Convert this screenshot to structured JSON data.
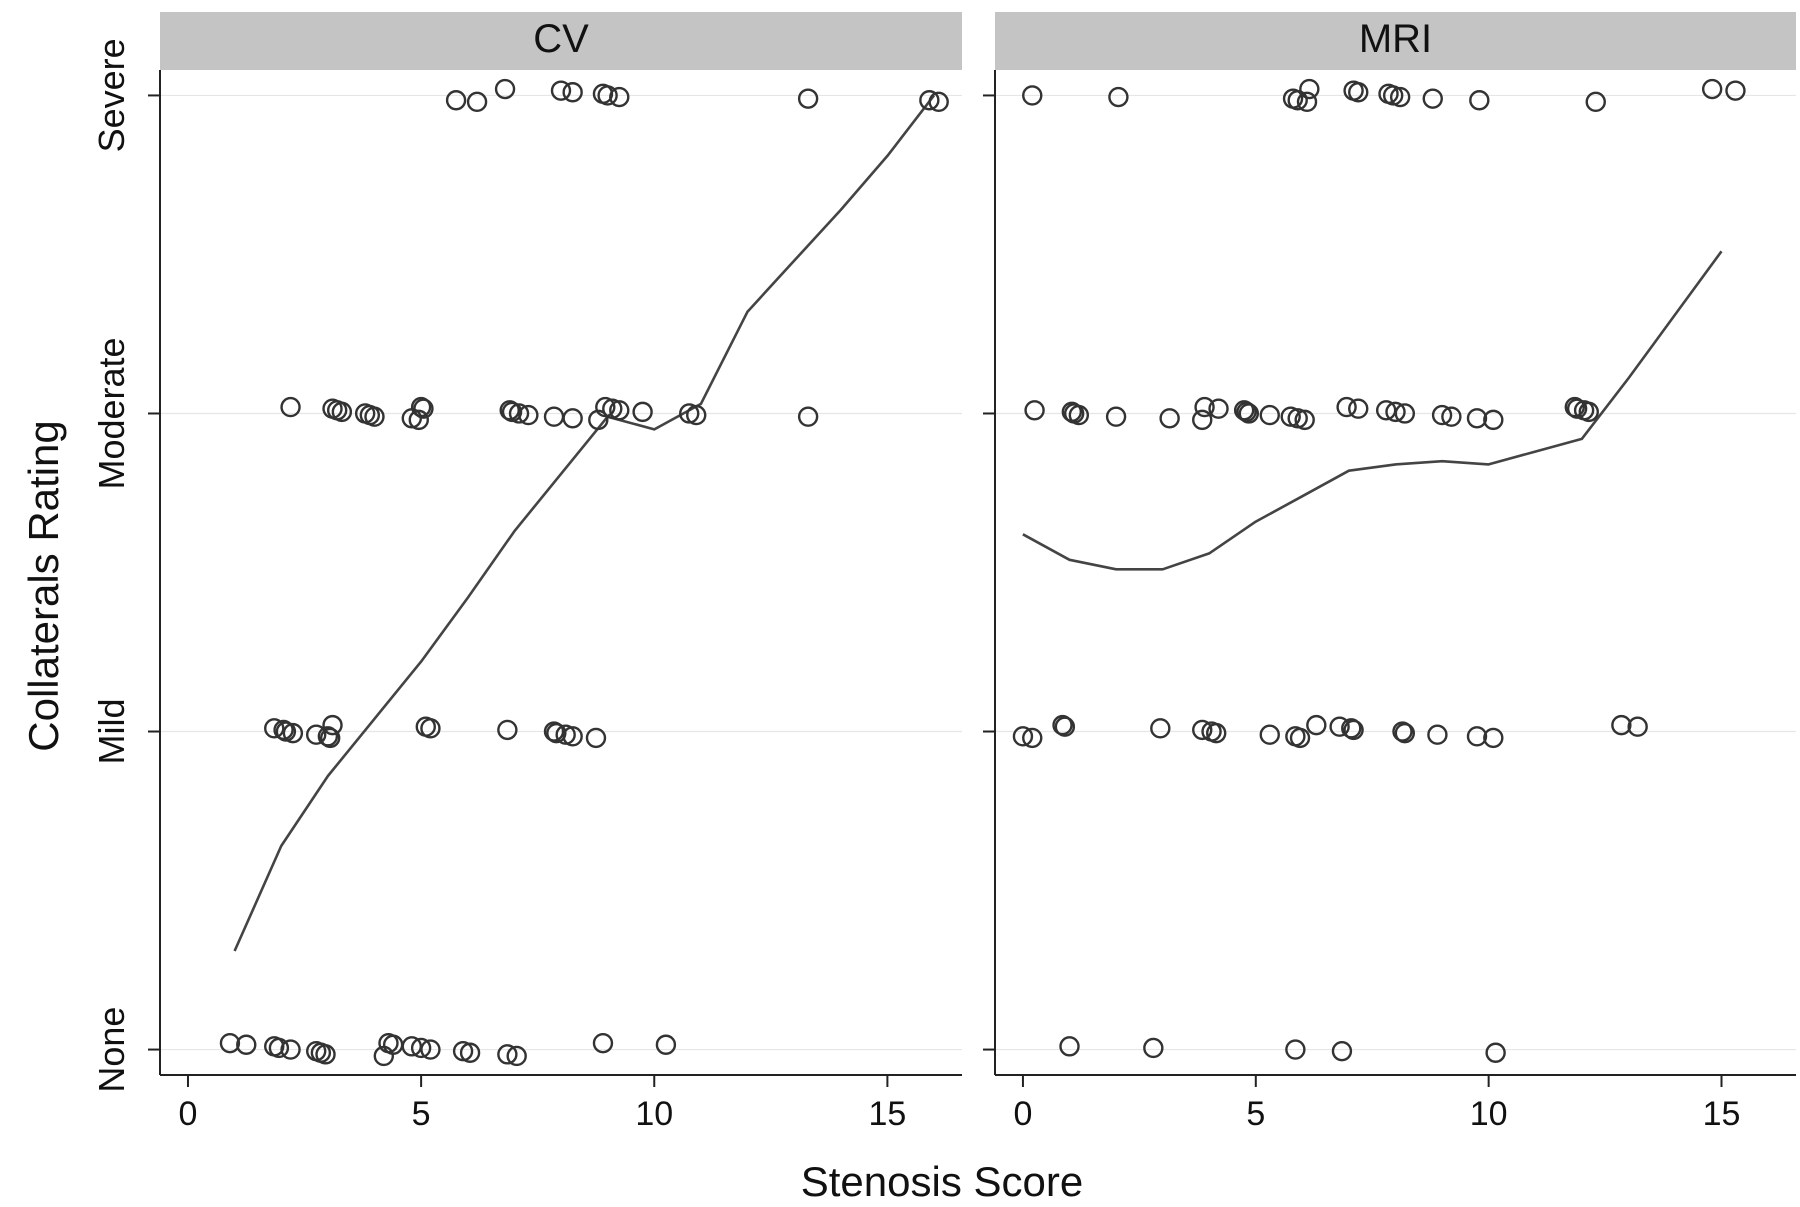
{
  "chart_data": {
    "type": "scatter",
    "xlabel": "Stenosis Score",
    "ylabel": "Collaterals Rating",
    "y_categories": [
      "None",
      "Mild",
      "Moderate",
      "Severe"
    ],
    "x_ticks": [
      0,
      5,
      10,
      15
    ],
    "xlim": [
      -0.6,
      16.6
    ],
    "ylim": [
      -0.08,
      3.08
    ],
    "panels": [
      {
        "title": "CV",
        "points": [
          {
            "x": 0.9,
            "y": 0
          },
          {
            "x": 1.25,
            "y": 0
          },
          {
            "x": 1.85,
            "y": 0
          },
          {
            "x": 1.95,
            "y": 0
          },
          {
            "x": 2.2,
            "y": 0
          },
          {
            "x": 2.75,
            "y": 0
          },
          {
            "x": 2.85,
            "y": 0
          },
          {
            "x": 2.95,
            "y": 0
          },
          {
            "x": 4.2,
            "y": 0
          },
          {
            "x": 4.3,
            "y": 0
          },
          {
            "x": 4.4,
            "y": 0
          },
          {
            "x": 4.8,
            "y": 0
          },
          {
            "x": 5.0,
            "y": 0
          },
          {
            "x": 5.2,
            "y": 0
          },
          {
            "x": 5.9,
            "y": 0
          },
          {
            "x": 6.05,
            "y": 0
          },
          {
            "x": 6.85,
            "y": 0
          },
          {
            "x": 7.05,
            "y": 0
          },
          {
            "x": 8.9,
            "y": 0
          },
          {
            "x": 10.25,
            "y": 0
          },
          {
            "x": 1.85,
            "y": 1
          },
          {
            "x": 2.05,
            "y": 1
          },
          {
            "x": 2.1,
            "y": 1
          },
          {
            "x": 2.25,
            "y": 1
          },
          {
            "x": 2.75,
            "y": 1
          },
          {
            "x": 3.0,
            "y": 1
          },
          {
            "x": 3.05,
            "y": 1
          },
          {
            "x": 3.1,
            "y": 1
          },
          {
            "x": 5.1,
            "y": 1
          },
          {
            "x": 5.2,
            "y": 1
          },
          {
            "x": 6.85,
            "y": 1
          },
          {
            "x": 7.85,
            "y": 1
          },
          {
            "x": 7.9,
            "y": 1
          },
          {
            "x": 8.1,
            "y": 1
          },
          {
            "x": 8.25,
            "y": 1
          },
          {
            "x": 8.75,
            "y": 1
          },
          {
            "x": 2.2,
            "y": 2
          },
          {
            "x": 3.1,
            "y": 2
          },
          {
            "x": 3.2,
            "y": 2
          },
          {
            "x": 3.3,
            "y": 2
          },
          {
            "x": 3.8,
            "y": 2
          },
          {
            "x": 3.9,
            "y": 2
          },
          {
            "x": 4.0,
            "y": 2
          },
          {
            "x": 4.8,
            "y": 2
          },
          {
            "x": 4.95,
            "y": 2
          },
          {
            "x": 5.0,
            "y": 2
          },
          {
            "x": 5.05,
            "y": 2
          },
          {
            "x": 6.9,
            "y": 2
          },
          {
            "x": 6.95,
            "y": 2
          },
          {
            "x": 7.1,
            "y": 2
          },
          {
            "x": 7.3,
            "y": 2
          },
          {
            "x": 7.85,
            "y": 2
          },
          {
            "x": 8.25,
            "y": 2
          },
          {
            "x": 8.8,
            "y": 2
          },
          {
            "x": 8.95,
            "y": 2
          },
          {
            "x": 9.1,
            "y": 2
          },
          {
            "x": 9.25,
            "y": 2
          },
          {
            "x": 9.75,
            "y": 2
          },
          {
            "x": 10.75,
            "y": 2
          },
          {
            "x": 10.9,
            "y": 2
          },
          {
            "x": 13.3,
            "y": 2
          },
          {
            "x": 5.75,
            "y": 3
          },
          {
            "x": 6.2,
            "y": 3
          },
          {
            "x": 6.8,
            "y": 3
          },
          {
            "x": 8.0,
            "y": 3
          },
          {
            "x": 8.25,
            "y": 3
          },
          {
            "x": 8.9,
            "y": 3
          },
          {
            "x": 9.0,
            "y": 3
          },
          {
            "x": 9.25,
            "y": 3
          },
          {
            "x": 13.3,
            "y": 3
          },
          {
            "x": 15.9,
            "y": 3
          },
          {
            "x": 16.1,
            "y": 3
          }
        ],
        "fit_line": [
          {
            "x": 1.0,
            "y": 0.31
          },
          {
            "x": 2.0,
            "y": 0.64
          },
          {
            "x": 3.0,
            "y": 0.86
          },
          {
            "x": 4.0,
            "y": 1.04
          },
          {
            "x": 5.0,
            "y": 1.22
          },
          {
            "x": 6.0,
            "y": 1.42
          },
          {
            "x": 7.0,
            "y": 1.63
          },
          {
            "x": 8.0,
            "y": 1.81
          },
          {
            "x": 9.0,
            "y": 1.99
          },
          {
            "x": 10.0,
            "y": 1.95
          },
          {
            "x": 11.0,
            "y": 2.03
          },
          {
            "x": 12.0,
            "y": 2.32
          },
          {
            "x": 13.0,
            "y": 2.48
          },
          {
            "x": 14.0,
            "y": 2.64
          },
          {
            "x": 15.0,
            "y": 2.81
          },
          {
            "x": 16.0,
            "y": 3.0
          }
        ]
      },
      {
        "title": "MRI",
        "points": [
          {
            "x": 1.0,
            "y": 0
          },
          {
            "x": 2.8,
            "y": 0
          },
          {
            "x": 5.85,
            "y": 0
          },
          {
            "x": 6.85,
            "y": 0
          },
          {
            "x": 10.15,
            "y": 0
          },
          {
            "x": 0.0,
            "y": 1
          },
          {
            "x": 0.2,
            "y": 1
          },
          {
            "x": 0.85,
            "y": 1
          },
          {
            "x": 0.9,
            "y": 1
          },
          {
            "x": 2.95,
            "y": 1
          },
          {
            "x": 3.85,
            "y": 1
          },
          {
            "x": 4.05,
            "y": 1
          },
          {
            "x": 4.15,
            "y": 1
          },
          {
            "x": 5.3,
            "y": 1
          },
          {
            "x": 5.85,
            "y": 1
          },
          {
            "x": 5.95,
            "y": 1
          },
          {
            "x": 6.3,
            "y": 1
          },
          {
            "x": 6.8,
            "y": 1
          },
          {
            "x": 7.05,
            "y": 1
          },
          {
            "x": 7.1,
            "y": 1
          },
          {
            "x": 8.15,
            "y": 1
          },
          {
            "x": 8.2,
            "y": 1
          },
          {
            "x": 8.9,
            "y": 1
          },
          {
            "x": 9.75,
            "y": 1
          },
          {
            "x": 10.1,
            "y": 1
          },
          {
            "x": 12.85,
            "y": 1
          },
          {
            "x": 13.2,
            "y": 1
          },
          {
            "x": 0.25,
            "y": 2
          },
          {
            "x": 1.05,
            "y": 2
          },
          {
            "x": 1.1,
            "y": 2
          },
          {
            "x": 1.2,
            "y": 2
          },
          {
            "x": 2.0,
            "y": 2
          },
          {
            "x": 3.15,
            "y": 2
          },
          {
            "x": 3.85,
            "y": 2
          },
          {
            "x": 3.9,
            "y": 2
          },
          {
            "x": 4.2,
            "y": 2
          },
          {
            "x": 4.75,
            "y": 2
          },
          {
            "x": 4.8,
            "y": 2
          },
          {
            "x": 4.85,
            "y": 2
          },
          {
            "x": 5.3,
            "y": 2
          },
          {
            "x": 5.75,
            "y": 2
          },
          {
            "x": 5.9,
            "y": 2
          },
          {
            "x": 6.05,
            "y": 2
          },
          {
            "x": 6.95,
            "y": 2
          },
          {
            "x": 7.2,
            "y": 2
          },
          {
            "x": 7.8,
            "y": 2
          },
          {
            "x": 8.0,
            "y": 2
          },
          {
            "x": 8.2,
            "y": 2
          },
          {
            "x": 9.0,
            "y": 2
          },
          {
            "x": 9.2,
            "y": 2
          },
          {
            "x": 9.75,
            "y": 2
          },
          {
            "x": 10.1,
            "y": 2
          },
          {
            "x": 11.85,
            "y": 2
          },
          {
            "x": 11.9,
            "y": 2
          },
          {
            "x": 12.05,
            "y": 2
          },
          {
            "x": 12.15,
            "y": 2
          },
          {
            "x": 0.2,
            "y": 3
          },
          {
            "x": 2.05,
            "y": 3
          },
          {
            "x": 5.8,
            "y": 3
          },
          {
            "x": 5.9,
            "y": 3
          },
          {
            "x": 6.1,
            "y": 3
          },
          {
            "x": 6.15,
            "y": 3
          },
          {
            "x": 7.1,
            "y": 3
          },
          {
            "x": 7.2,
            "y": 3
          },
          {
            "x": 7.85,
            "y": 3
          },
          {
            "x": 7.95,
            "y": 3
          },
          {
            "x": 8.1,
            "y": 3
          },
          {
            "x": 8.8,
            "y": 3
          },
          {
            "x": 9.8,
            "y": 3
          },
          {
            "x": 12.3,
            "y": 3
          },
          {
            "x": 14.8,
            "y": 3
          },
          {
            "x": 15.3,
            "y": 3
          }
        ],
        "fit_line": [
          {
            "x": 0.0,
            "y": 1.62
          },
          {
            "x": 1.0,
            "y": 1.54
          },
          {
            "x": 2.0,
            "y": 1.51
          },
          {
            "x": 3.0,
            "y": 1.51
          },
          {
            "x": 4.0,
            "y": 1.56
          },
          {
            "x": 5.0,
            "y": 1.66
          },
          {
            "x": 6.0,
            "y": 1.74
          },
          {
            "x": 7.0,
            "y": 1.82
          },
          {
            "x": 8.0,
            "y": 1.84
          },
          {
            "x": 9.0,
            "y": 1.85
          },
          {
            "x": 10.0,
            "y": 1.84
          },
          {
            "x": 11.0,
            "y": 1.88
          },
          {
            "x": 12.0,
            "y": 1.92
          },
          {
            "x": 13.0,
            "y": 2.11
          },
          {
            "x": 14.0,
            "y": 2.31
          },
          {
            "x": 15.0,
            "y": 2.51
          }
        ]
      }
    ]
  }
}
